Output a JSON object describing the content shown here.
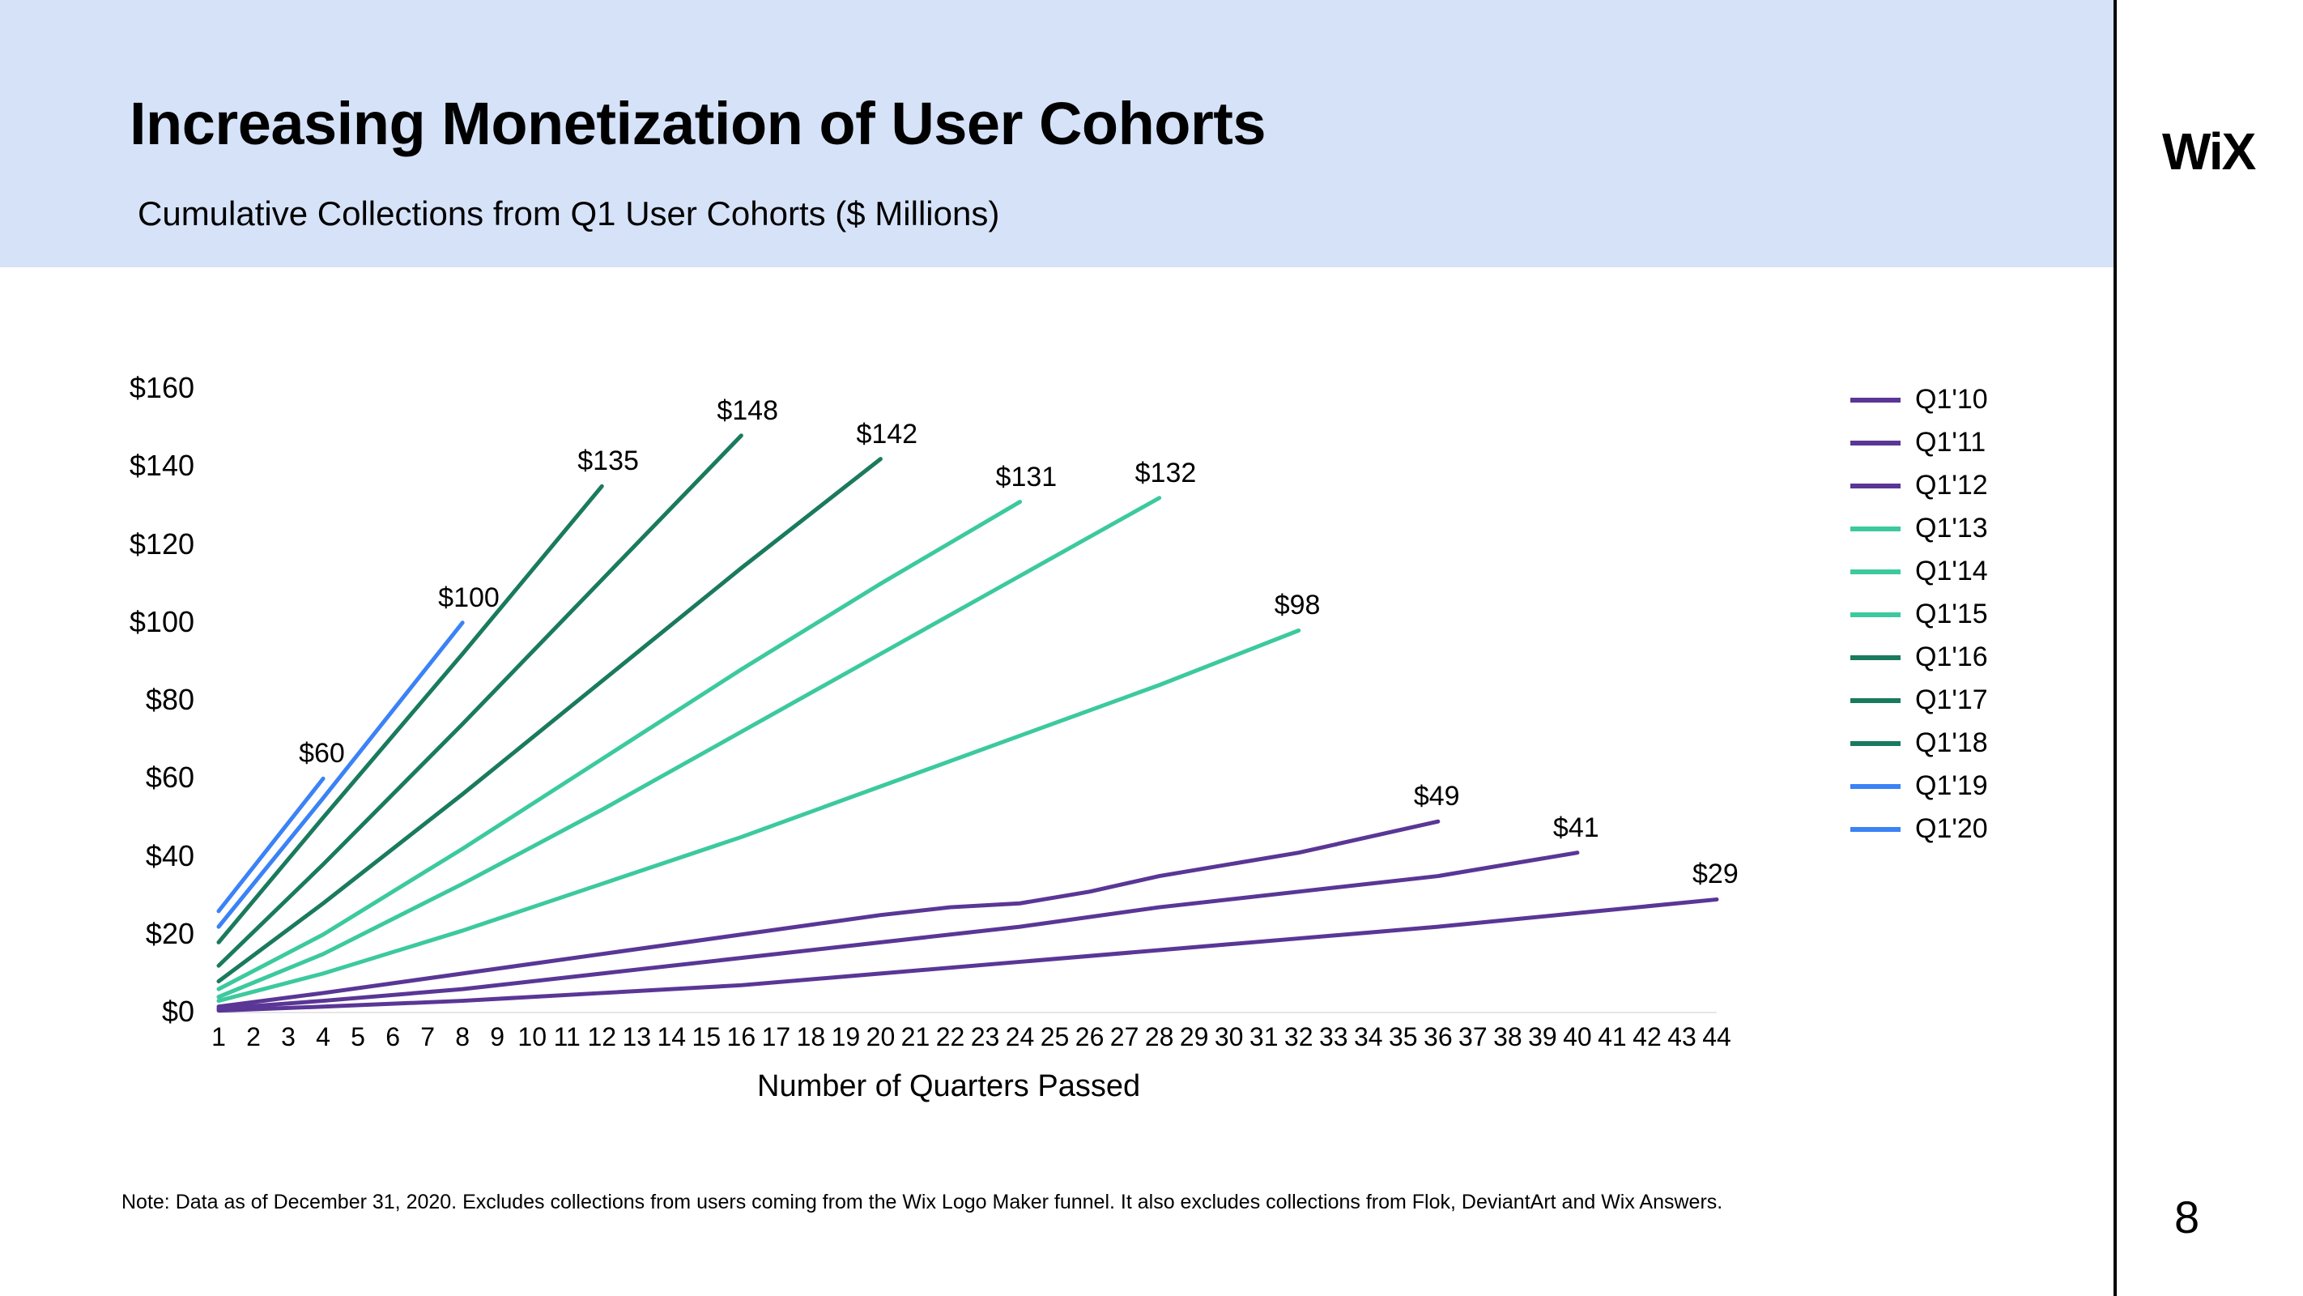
{
  "header": {
    "title": "Increasing Monetization of User Cohorts",
    "subtitle": "Cumulative Collections from Q1 User Cohorts ($ Millions)",
    "brand": "WiX",
    "band_color": "#d6e2f8"
  },
  "page_number": "8",
  "footnote": "Note: Data as of December 31, 2020. Excludes collections from users coming from the Wix Logo Maker funnel. It also excludes collections from Flok, DeviantArt and Wix Answers.",
  "chart": {
    "type": "line",
    "x_axis_title": "Number of Quarters Passed",
    "xlim": [
      1,
      44
    ],
    "ylim": [
      0,
      160
    ],
    "ytick_step": 20,
    "y_ticks": [
      0,
      20,
      40,
      60,
      80,
      100,
      120,
      140,
      160
    ],
    "x_ticks": [
      1,
      2,
      3,
      4,
      5,
      6,
      7,
      8,
      9,
      10,
      11,
      12,
      13,
      14,
      15,
      16,
      17,
      18,
      19,
      20,
      21,
      22,
      23,
      24,
      25,
      26,
      27,
      28,
      29,
      30,
      31,
      32,
      33,
      34,
      35,
      36,
      37,
      38,
      39,
      40,
      41,
      42,
      43,
      44
    ],
    "line_width": 5,
    "background_color": "#ffffff",
    "axis_color": "#000000",
    "tick_label_fontsize": 36,
    "x_tick_label_fontsize": 32,
    "data_label_fontsize": 34,
    "x_axis_title_fontsize": 38,
    "series": [
      {
        "name": "Q1'10",
        "color": "#5a3696",
        "end_label": "$29",
        "points": [
          [
            1,
            0.5
          ],
          [
            4,
            1.5
          ],
          [
            8,
            3
          ],
          [
            12,
            5
          ],
          [
            16,
            7
          ],
          [
            20,
            10
          ],
          [
            24,
            13
          ],
          [
            28,
            16
          ],
          [
            32,
            19
          ],
          [
            36,
            22
          ],
          [
            40,
            25.5
          ],
          [
            44,
            29
          ]
        ]
      },
      {
        "name": "Q1'11",
        "color": "#5a3696",
        "end_label": "$41",
        "points": [
          [
            1,
            1
          ],
          [
            4,
            3
          ],
          [
            8,
            6
          ],
          [
            12,
            10
          ],
          [
            16,
            14
          ],
          [
            20,
            18
          ],
          [
            24,
            22
          ],
          [
            28,
            27
          ],
          [
            32,
            31
          ],
          [
            36,
            35
          ],
          [
            40,
            41
          ]
        ]
      },
      {
        "name": "Q1'12",
        "color": "#5a3696",
        "end_label": "$49",
        "points": [
          [
            1,
            1.5
          ],
          [
            4,
            5
          ],
          [
            8,
            10
          ],
          [
            12,
            15
          ],
          [
            16,
            20
          ],
          [
            20,
            25
          ],
          [
            22,
            27
          ],
          [
            24,
            28
          ],
          [
            26,
            31
          ],
          [
            28,
            35
          ],
          [
            32,
            41
          ],
          [
            36,
            49
          ]
        ]
      },
      {
        "name": "Q1'13",
        "color": "#3cc99e",
        "end_label": "$98",
        "points": [
          [
            1,
            3
          ],
          [
            4,
            10
          ],
          [
            8,
            21
          ],
          [
            12,
            33
          ],
          [
            16,
            45
          ],
          [
            20,
            58
          ],
          [
            24,
            71
          ],
          [
            28,
            84
          ],
          [
            32,
            98
          ]
        ]
      },
      {
        "name": "Q1'14",
        "color": "#3cc99e",
        "end_label": "$132",
        "points": [
          [
            1,
            4
          ],
          [
            4,
            15
          ],
          [
            8,
            33
          ],
          [
            12,
            52
          ],
          [
            16,
            72
          ],
          [
            20,
            92
          ],
          [
            24,
            112
          ],
          [
            28,
            132
          ]
        ]
      },
      {
        "name": "Q1'15",
        "color": "#3cc99e",
        "end_label": "$131",
        "points": [
          [
            1,
            6
          ],
          [
            4,
            20
          ],
          [
            8,
            42
          ],
          [
            12,
            65
          ],
          [
            16,
            88
          ],
          [
            20,
            110
          ],
          [
            24,
            131
          ]
        ]
      },
      {
        "name": "Q1'16",
        "color": "#1a7a5e",
        "end_label": "$142",
        "points": [
          [
            1,
            8
          ],
          [
            4,
            28
          ],
          [
            8,
            56
          ],
          [
            12,
            85
          ],
          [
            16,
            114
          ],
          [
            20,
            142
          ]
        ]
      },
      {
        "name": "Q1'17",
        "color": "#1a7a5e",
        "end_label": "$148",
        "points": [
          [
            1,
            12
          ],
          [
            4,
            38
          ],
          [
            8,
            74
          ],
          [
            12,
            111
          ],
          [
            16,
            148
          ]
        ]
      },
      {
        "name": "Q1'18",
        "color": "#1a7a5e",
        "end_label": "$135",
        "points": [
          [
            1,
            18
          ],
          [
            4,
            50
          ],
          [
            8,
            92
          ],
          [
            12,
            135
          ]
        ]
      },
      {
        "name": "Q1'19",
        "color": "#3b82f6",
        "end_label": "$100",
        "points": [
          [
            1,
            22
          ],
          [
            4,
            55
          ],
          [
            8,
            100
          ]
        ]
      },
      {
        "name": "Q1'20",
        "color": "#3b82f6",
        "end_label": "$60",
        "points": [
          [
            1,
            26
          ],
          [
            4,
            60
          ]
        ]
      }
    ]
  }
}
